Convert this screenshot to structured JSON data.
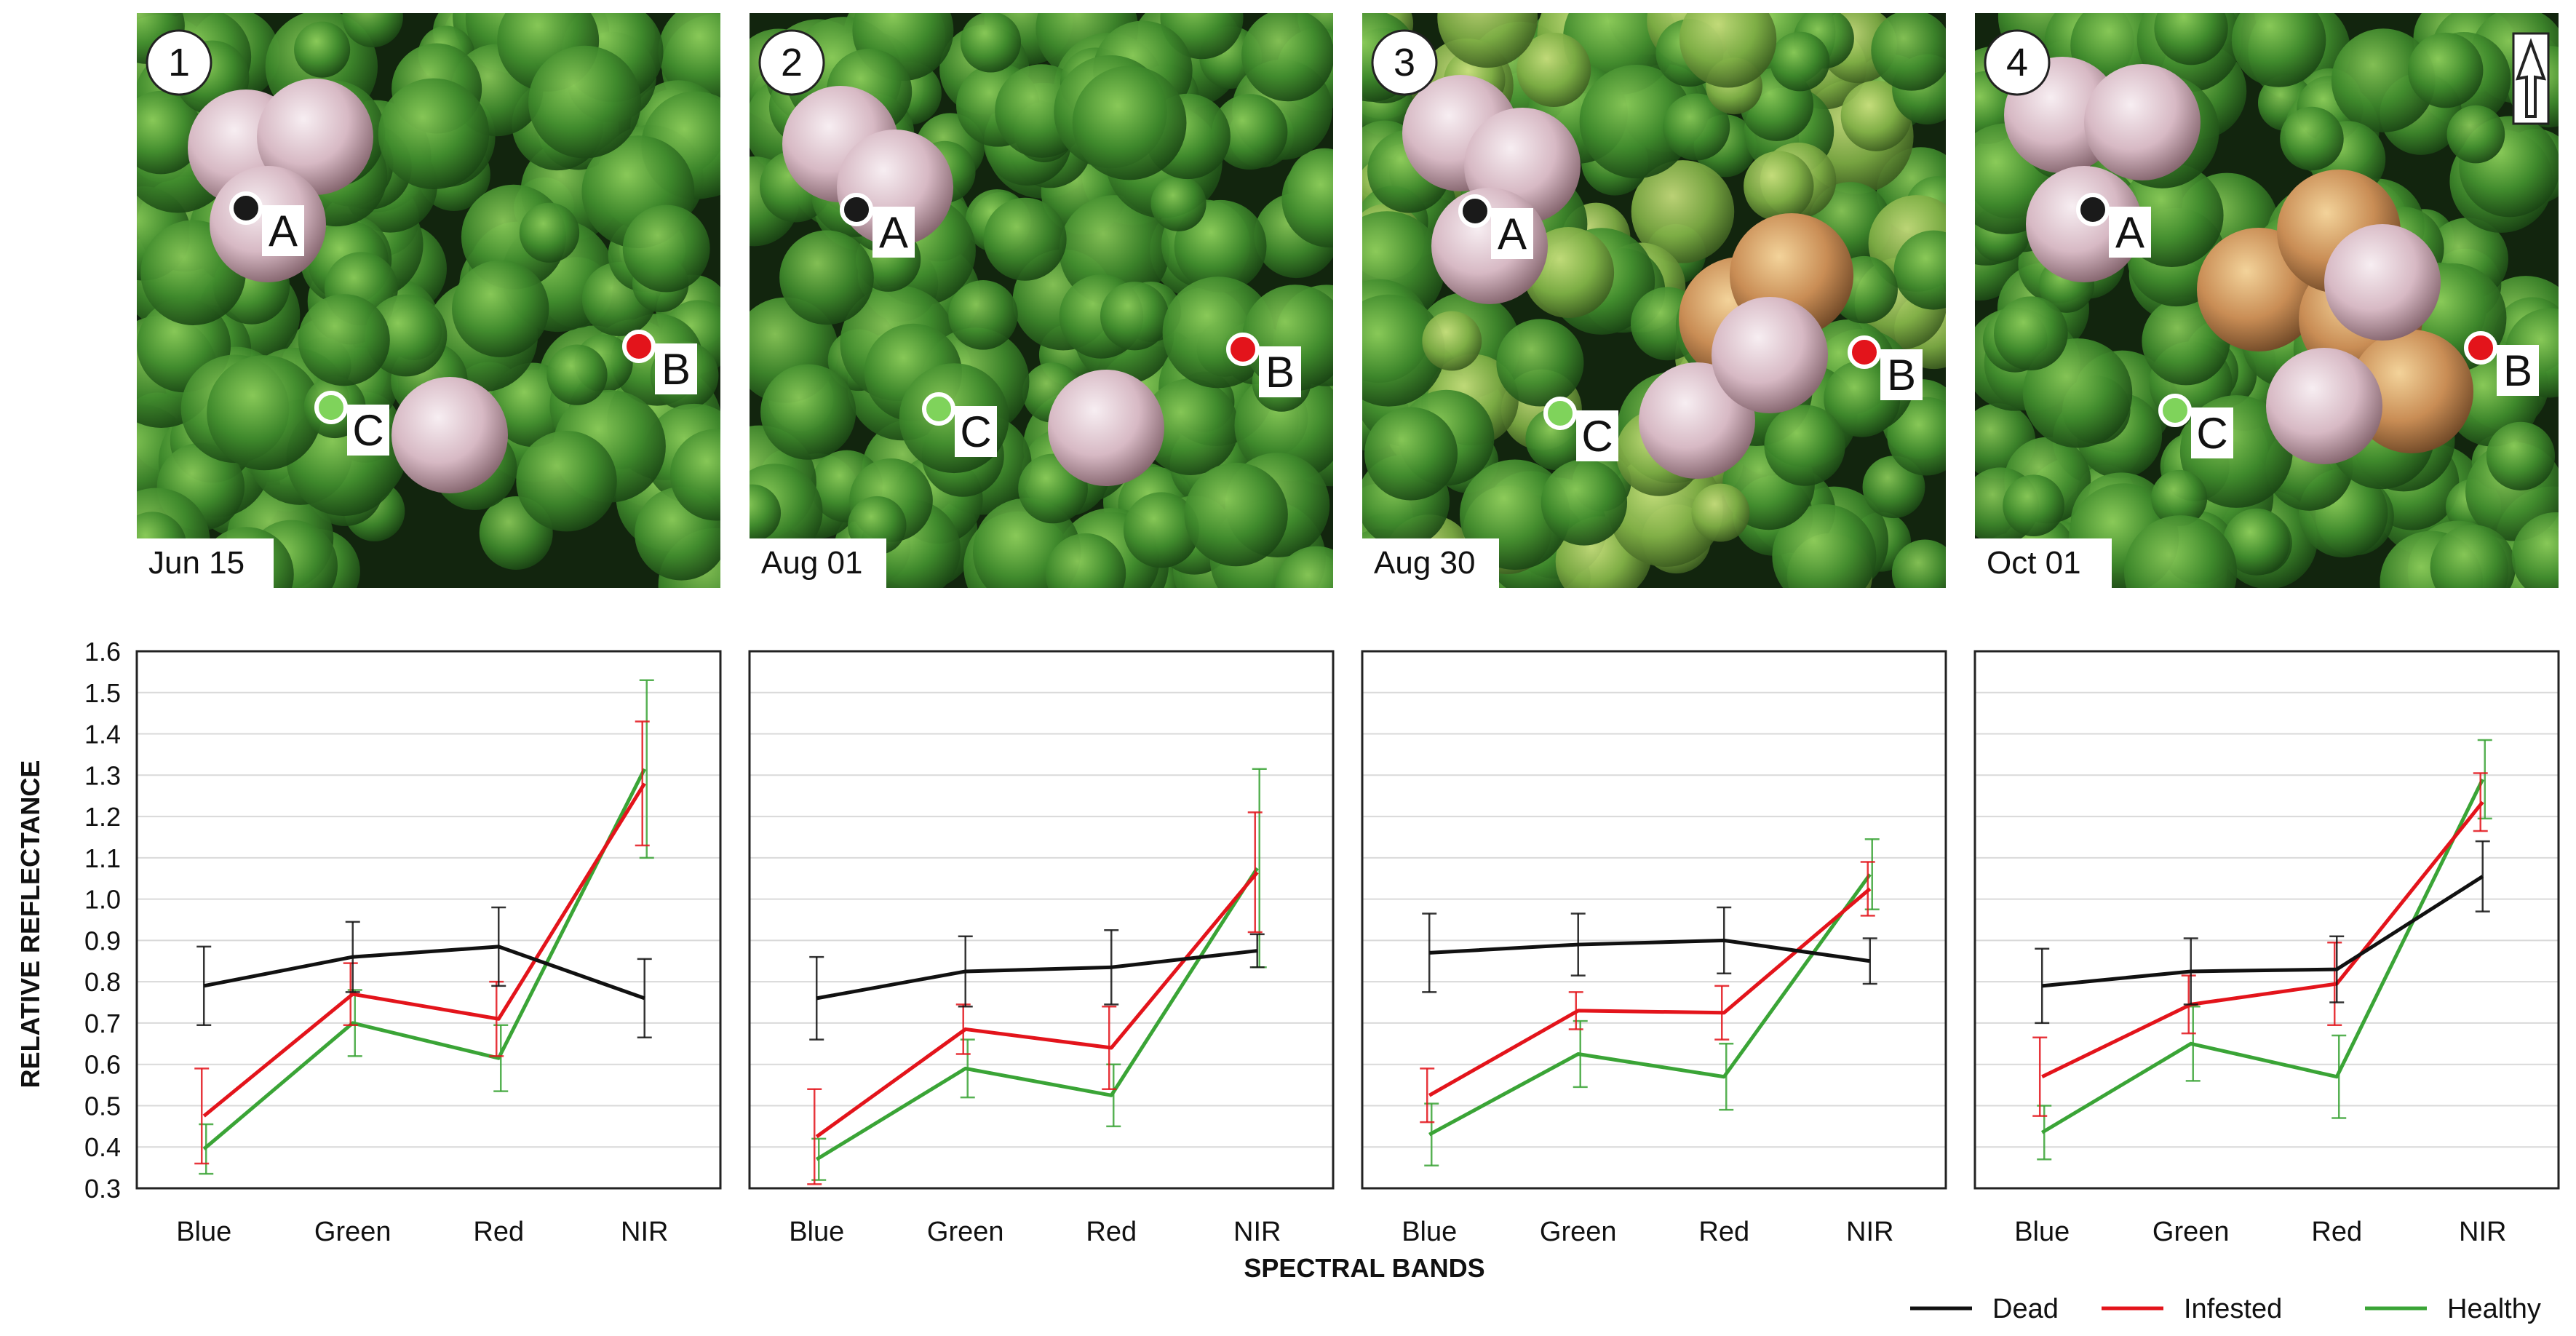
{
  "photos": [
    {
      "number": "1",
      "date": "Jun 15",
      "points": {
        "A": "A",
        "B": "B",
        "C": "C"
      }
    },
    {
      "number": "2",
      "date": "Aug 01",
      "points": {
        "A": "A",
        "B": "B",
        "C": "C"
      }
    },
    {
      "number": "3",
      "date": "Aug 30",
      "points": {
        "A": "A",
        "B": "B",
        "C": "C"
      }
    },
    {
      "number": "4",
      "date": "Oct 01",
      "points": {
        "A": "A",
        "B": "B",
        "C": "C"
      }
    }
  ],
  "north_arrow": "north-arrow-icon",
  "colors": {
    "Dead": "#111111",
    "Infested": "#e3141b",
    "Healthy": "#3aa436",
    "point_A": "#1a1a1a",
    "point_B": "#e3141b",
    "point_C": "#7fd35b"
  },
  "ylabel": "RELATIVE  REFLECTANCE",
  "xlabel": "SPECTRAL BANDS",
  "legend": [
    "Dead",
    "Infested",
    "Healthy"
  ],
  "chart_data": [
    {
      "type": "line",
      "categories": [
        "Blue",
        "Green",
        "Red",
        "NIR"
      ],
      "ylim": [
        0.3,
        1.6
      ],
      "yticks": [
        "0.3",
        "0.4",
        "0.5",
        "0.6",
        "0.7",
        "0.8",
        "0.9",
        "1.0",
        "1.1",
        "1.2",
        "1.3",
        "1.4",
        "1.5",
        "1.6"
      ],
      "series": [
        {
          "name": "Dead",
          "values": [
            0.79,
            0.86,
            0.885,
            0.76
          ],
          "errors": [
            0.095,
            0.085,
            0.095,
            0.095
          ]
        },
        {
          "name": "Infested",
          "values": [
            0.475,
            0.77,
            0.71,
            1.28
          ],
          "errors": [
            0.115,
            0.075,
            0.09,
            0.15
          ]
        },
        {
          "name": "Healthy",
          "values": [
            0.395,
            0.7,
            0.615,
            1.315
          ],
          "errors": [
            0.06,
            0.08,
            0.08,
            0.215
          ]
        }
      ]
    },
    {
      "type": "line",
      "categories": [
        "Blue",
        "Green",
        "Red",
        "NIR"
      ],
      "ylim": [
        0.3,
        1.6
      ],
      "series": [
        {
          "name": "Dead",
          "values": [
            0.76,
            0.825,
            0.835,
            0.875
          ],
          "errors": [
            0.1,
            0.085,
            0.09,
            0.04
          ]
        },
        {
          "name": "Infested",
          "values": [
            0.425,
            0.685,
            0.64,
            1.065
          ],
          "errors": [
            0.115,
            0.06,
            0.1,
            0.145
          ]
        },
        {
          "name": "Healthy",
          "values": [
            0.37,
            0.59,
            0.525,
            1.075
          ],
          "errors": [
            0.05,
            0.07,
            0.075,
            0.24
          ]
        }
      ]
    },
    {
      "type": "line",
      "categories": [
        "Blue",
        "Green",
        "Red",
        "NIR"
      ],
      "ylim": [
        0.3,
        1.6
      ],
      "series": [
        {
          "name": "Dead",
          "values": [
            0.87,
            0.89,
            0.9,
            0.85
          ],
          "errors": [
            0.095,
            0.075,
            0.08,
            0.055
          ]
        },
        {
          "name": "Infested",
          "values": [
            0.525,
            0.73,
            0.725,
            1.025
          ],
          "errors": [
            0.065,
            0.045,
            0.065,
            0.065
          ]
        },
        {
          "name": "Healthy",
          "values": [
            0.43,
            0.625,
            0.57,
            1.06
          ],
          "errors": [
            0.075,
            0.08,
            0.08,
            0.085
          ]
        }
      ]
    },
    {
      "type": "line",
      "categories": [
        "Blue",
        "Green",
        "Red",
        "NIR"
      ],
      "ylim": [
        0.3,
        1.6
      ],
      "series": [
        {
          "name": "Dead",
          "values": [
            0.79,
            0.825,
            0.83,
            1.055
          ],
          "errors": [
            0.09,
            0.08,
            0.08,
            0.085
          ]
        },
        {
          "name": "Infested",
          "values": [
            0.57,
            0.745,
            0.795,
            1.235
          ],
          "errors": [
            0.095,
            0.07,
            0.1,
            0.07
          ]
        },
        {
          "name": "Healthy",
          "values": [
            0.435,
            0.65,
            0.57,
            1.29
          ],
          "errors": [
            0.065,
            0.09,
            0.1,
            0.095
          ]
        }
      ]
    }
  ]
}
